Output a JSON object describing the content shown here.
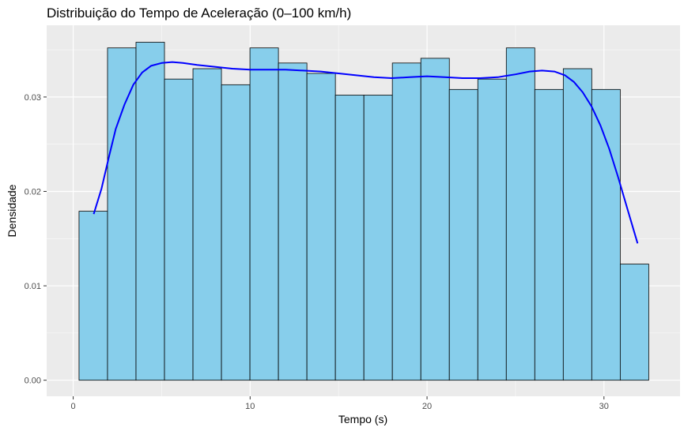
{
  "chart_data": {
    "type": "histogram",
    "title": "Distribuição do Tempo de Aceleração (0–100 km/h)",
    "xlabel": "Tempo (s)",
    "ylabel": "Densidade",
    "xlim": [
      -1.5,
      34.3
    ],
    "ylim": [
      -0.0017,
      0.0376
    ],
    "x_ticks": [
      0,
      10,
      20,
      30
    ],
    "x_tick_labels": [
      "0",
      "10",
      "20",
      "30"
    ],
    "y_ticks": [
      0,
      0.01,
      0.02,
      0.03
    ],
    "y_tick_labels": [
      "0.00",
      "0.01",
      "0.02",
      "0.03"
    ],
    "grid": true,
    "bars": [
      {
        "x0": 0.33,
        "x1": 1.94,
        "density": 0.0179
      },
      {
        "x0": 1.94,
        "x1": 3.55,
        "density": 0.0352
      },
      {
        "x0": 3.55,
        "x1": 5.16,
        "density": 0.0358
      },
      {
        "x0": 5.16,
        "x1": 6.77,
        "density": 0.0319
      },
      {
        "x0": 6.77,
        "x1": 8.38,
        "density": 0.033
      },
      {
        "x0": 8.38,
        "x1": 9.99,
        "density": 0.0313
      },
      {
        "x0": 9.99,
        "x1": 11.6,
        "density": 0.0352
      },
      {
        "x0": 11.6,
        "x1": 13.21,
        "density": 0.0336
      },
      {
        "x0": 13.21,
        "x1": 14.82,
        "density": 0.0325
      },
      {
        "x0": 14.82,
        "x1": 16.43,
        "density": 0.0302
      },
      {
        "x0": 16.43,
        "x1": 18.04,
        "density": 0.0302
      },
      {
        "x0": 18.04,
        "x1": 19.65,
        "density": 0.0336
      },
      {
        "x0": 19.65,
        "x1": 21.26,
        "density": 0.0341
      },
      {
        "x0": 21.26,
        "x1": 22.87,
        "density": 0.0308
      },
      {
        "x0": 22.87,
        "x1": 24.48,
        "density": 0.0319
      },
      {
        "x0": 24.48,
        "x1": 26.09,
        "density": 0.0352
      },
      {
        "x0": 26.09,
        "x1": 27.7,
        "density": 0.0308
      },
      {
        "x0": 27.7,
        "x1": 29.31,
        "density": 0.033
      },
      {
        "x0": 29.31,
        "x1": 30.92,
        "density": 0.0308
      },
      {
        "x0": 30.92,
        "x1": 32.53,
        "density": 0.0123
      }
    ],
    "density_curve": {
      "x": [
        1.16,
        1.6,
        2.0,
        2.4,
        2.9,
        3.4,
        3.9,
        4.4,
        5.0,
        5.6,
        6.2,
        7.0,
        8.0,
        9.0,
        10.0,
        11.0,
        12.0,
        13.0,
        14.0,
        15.0,
        16.0,
        17.0,
        18.0,
        19.0,
        20.0,
        21.0,
        22.0,
        23.0,
        24.0,
        25.0,
        25.8,
        26.5,
        27.2,
        27.8,
        28.3,
        28.8,
        29.3,
        29.8,
        30.3,
        30.8,
        31.3,
        31.9
      ],
      "y": [
        0.0176,
        0.0203,
        0.0235,
        0.0266,
        0.0292,
        0.0313,
        0.0326,
        0.0333,
        0.0336,
        0.0337,
        0.0336,
        0.0334,
        0.0332,
        0.033,
        0.0329,
        0.0329,
        0.0329,
        0.0328,
        0.0327,
        0.0325,
        0.0323,
        0.0321,
        0.032,
        0.0321,
        0.0322,
        0.0321,
        0.032,
        0.032,
        0.0321,
        0.0324,
        0.0327,
        0.0328,
        0.0327,
        0.0323,
        0.0316,
        0.0305,
        0.029,
        0.027,
        0.0245,
        0.0215,
        0.0183,
        0.0145
      ],
      "color": "#0000ff"
    },
    "bar_fill": "#87ceeb",
    "bar_stroke": "#000000",
    "panel_background": "#ebebeb",
    "grid_color": "#ffffff"
  }
}
